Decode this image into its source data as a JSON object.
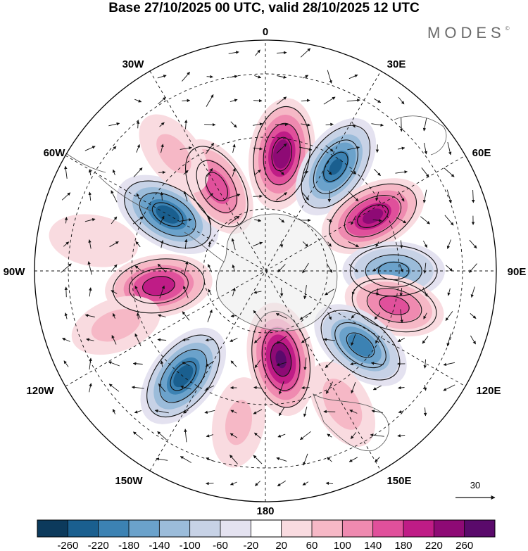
{
  "title": "Base 27/10/2025 00 UTC, valid 28/10/2025 12 UTC",
  "brand": "MODES",
  "brand_mark": "©",
  "longitude_labels": [
    "0",
    "30E",
    "60E",
    "90E",
    "120E",
    "150E",
    "180",
    "150W",
    "120W",
    "90W",
    "60W",
    "30W"
  ],
  "vector_reference": {
    "label": "30",
    "magnitude": 30
  },
  "colorbar": {
    "ticks": [
      "-260",
      "-220",
      "-180",
      "-140",
      "-100",
      "-60",
      "-20",
      "20",
      "60",
      "100",
      "140",
      "180",
      "220",
      "260"
    ],
    "colors": [
      "#0c3a5c",
      "#1a5f8f",
      "#3c82b3",
      "#6ba2cb",
      "#9bbcda",
      "#c7d2e6",
      "#e4e2f0",
      "#ffffff",
      "#f9dbe0",
      "#f6b8c6",
      "#ef8ab0",
      "#e0509b",
      "#bf1c86",
      "#8e0a75",
      "#5a0a6b"
    ]
  },
  "anomaly_centers": [
    {
      "lon": 8,
      "lat": -44,
      "value": 250
    },
    {
      "lon": 34,
      "lat": -41,
      "value": -220
    },
    {
      "lon": 63,
      "lat": -43,
      "value": 230
    },
    {
      "lon": 90,
      "lat": -40,
      "value": -160
    },
    {
      "lon": 105,
      "lat": -38,
      "value": 150
    },
    {
      "lon": 128,
      "lat": -43,
      "value": -200
    },
    {
      "lon": 170,
      "lat": -55,
      "value": 265
    },
    {
      "lon": 218,
      "lat": -38,
      "value": -240
    },
    {
      "lon": 262,
      "lat": -48,
      "value": 210
    },
    {
      "lon": 300,
      "lat": -46,
      "value": -240
    },
    {
      "lon": 330,
      "lat": -52,
      "value": 170
    },
    {
      "lon": 322,
      "lat": -32,
      "value": 60
    },
    {
      "lon": 250,
      "lat": -28,
      "value": 70
    },
    {
      "lon": 190,
      "lat": -30,
      "value": 60
    },
    {
      "lon": 150,
      "lat": -30,
      "value": 80
    },
    {
      "lon": 280,
      "lat": -22,
      "value": 50
    }
  ]
}
